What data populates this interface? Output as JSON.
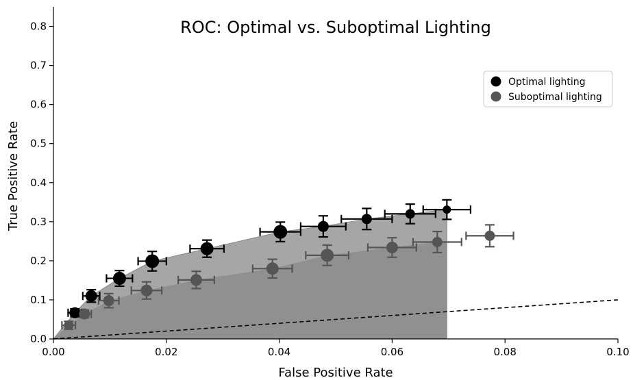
{
  "chart_data": {
    "type": "scatter",
    "title": "ROC: Optimal vs. Suboptimal Lighting",
    "xlabel": "False Positive Rate",
    "ylabel": "True Positive Rate",
    "xlim": [
      0.0,
      0.1
    ],
    "ylim": [
      0.0,
      0.85
    ],
    "xticks": [
      "0.00",
      "0.02",
      "0.04",
      "0.06",
      "0.08",
      "0.10"
    ],
    "yticks": [
      "0.0",
      "0.1",
      "0.2",
      "0.3",
      "0.4",
      "0.5",
      "0.6",
      "0.7",
      "0.8"
    ],
    "grid": false,
    "legend_position": "upper right",
    "diagonal_reference": true,
    "series": [
      {
        "name": "Optimal lighting",
        "color": "#000000",
        "fill_color": "#a6a6a6",
        "points": [
          {
            "x": 0.0038,
            "y": 0.067,
            "xerr": 0.0012,
            "yerr": 0.01
          },
          {
            "x": 0.0067,
            "y": 0.11,
            "xerr": 0.0015,
            "yerr": 0.016
          },
          {
            "x": 0.0117,
            "y": 0.155,
            "xerr": 0.0023,
            "yerr": 0.02
          },
          {
            "x": 0.0175,
            "y": 0.199,
            "xerr": 0.0025,
            "yerr": 0.025
          },
          {
            "x": 0.0272,
            "y": 0.231,
            "xerr": 0.003,
            "yerr": 0.022
          },
          {
            "x": 0.0402,
            "y": 0.274,
            "xerr": 0.0036,
            "yerr": 0.025
          },
          {
            "x": 0.0478,
            "y": 0.288,
            "xerr": 0.004,
            "yerr": 0.027
          },
          {
            "x": 0.0555,
            "y": 0.307,
            "xerr": 0.0045,
            "yerr": 0.027
          },
          {
            "x": 0.0632,
            "y": 0.32,
            "xerr": 0.0045,
            "yerr": 0.025
          },
          {
            "x": 0.0697,
            "y": 0.331,
            "xerr": 0.0042,
            "yerr": 0.025
          }
        ]
      },
      {
        "name": "Suboptimal lighting",
        "color": "#555555",
        "fill_color": "#909090",
        "points": [
          {
            "x": 0.0027,
            "y": 0.035,
            "xerr": 0.0012,
            "yerr": 0.01
          },
          {
            "x": 0.0055,
            "y": 0.064,
            "xerr": 0.0012,
            "yerr": 0.01
          },
          {
            "x": 0.0098,
            "y": 0.098,
            "xerr": 0.0018,
            "yerr": 0.018
          },
          {
            "x": 0.0165,
            "y": 0.124,
            "xerr": 0.0027,
            "yerr": 0.022
          },
          {
            "x": 0.0253,
            "y": 0.151,
            "xerr": 0.0032,
            "yerr": 0.022
          },
          {
            "x": 0.0388,
            "y": 0.18,
            "xerr": 0.0035,
            "yerr": 0.024
          },
          {
            "x": 0.0485,
            "y": 0.214,
            "xerr": 0.0038,
            "yerr": 0.026
          },
          {
            "x": 0.06,
            "y": 0.234,
            "xerr": 0.0043,
            "yerr": 0.025
          },
          {
            "x": 0.068,
            "y": 0.248,
            "xerr": 0.0043,
            "yerr": 0.027
          },
          {
            "x": 0.0773,
            "y": 0.264,
            "xerr": 0.0042,
            "yerr": 0.028
          }
        ]
      }
    ]
  }
}
